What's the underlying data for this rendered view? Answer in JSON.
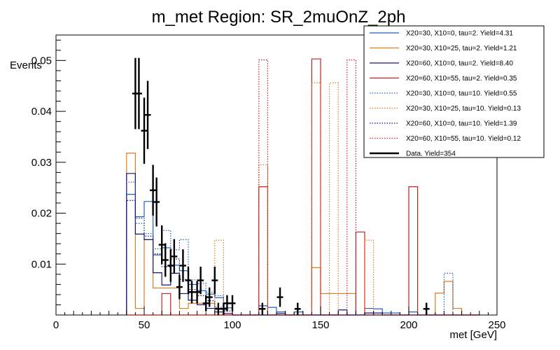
{
  "chart_data": {
    "type": "histogram",
    "title": "m_met Region: SR_2muOnZ_2ph",
    "xlabel": "met [GeV]",
    "ylabel": "Events",
    "xlim": [
      0,
      250
    ],
    "ylim": [
      0,
      0.055
    ],
    "bin_width": 5,
    "bin_start": 40,
    "x_ticks": [
      0,
      50,
      100,
      150,
      200,
      250
    ],
    "x_tick_labels": [
      "0",
      "50",
      "100",
      "150",
      "200",
      "250"
    ],
    "y_ticks": [
      0.01,
      0.02,
      0.03,
      0.04,
      0.05
    ],
    "y_tick_labels": [
      "0.01",
      "0.02",
      "0.03",
      "0.04",
      "0.05"
    ],
    "series": [
      {
        "name": "X20=30, X10=0, tau=2. Yield=4.31",
        "color": "#1f5fbf",
        "dash": false,
        "values": [
          0.0237,
          0.0193,
          0.0223,
          0.0118,
          0.0132,
          0.0098,
          0.0087,
          0.006,
          0.0048,
          0.0041,
          0.0034,
          0.0014,
          0.0,
          0.0,
          0.0,
          0.0018,
          0.0015,
          0.0006,
          0.0,
          0.0006,
          0.0,
          0.0,
          0.0,
          0.0,
          0.0,
          0.0,
          0.0,
          0.0013,
          0.0012,
          0.0004,
          0.0004,
          0.0,
          0.0006,
          0.0,
          0.0,
          0.0,
          0.0,
          0.0,
          0.0,
          0.0
        ]
      },
      {
        "name": "X20=30, X10=25, tau=2. Yield=1.21",
        "color": "#e07b20",
        "dash": false,
        "values": [
          0.0318,
          0.0013,
          0.0148,
          0.0053,
          0.0053,
          0.0053,
          0.0013,
          0.0023,
          0.0023,
          0.0023,
          0.0,
          0.0,
          0.0,
          0.0,
          0.0,
          0.0,
          0.0,
          0.0,
          0.0,
          0.0,
          0.0,
          0.0093,
          0.0042,
          0.0042,
          0.0042,
          0.0042,
          0.0,
          0.0,
          0.0,
          0.0,
          0.0,
          0.0,
          0.0,
          0.0,
          0.0,
          0.0043,
          0.0066,
          0.0013,
          0.0,
          0.0
        ]
      },
      {
        "name": "X20=60, X10=0, tau=2. Yield=8.40",
        "color": "#141478",
        "dash": false,
        "values": [
          0.0278,
          0.0159,
          0.0148,
          0.0083,
          0.0059,
          0.0082,
          0.0042,
          0.0029,
          0.002,
          0.0013,
          0.0006,
          0.0003,
          0.0,
          0.0,
          0.0,
          0.0,
          0.0,
          0.0003,
          0.0,
          0.0,
          0.0,
          0.0,
          0.0,
          0.0,
          0.001,
          0.0,
          0.0,
          0.0004,
          0.0004,
          0.0,
          0.0,
          0.0,
          0.0,
          0.0,
          0.0,
          0.0,
          0.0,
          0.0,
          0.0,
          0.0
        ]
      },
      {
        "name": "X20=60, X10=55, tau=2. Yield=0.35",
        "color": "#cc1f1f",
        "dash": false,
        "values": [
          0.0,
          0.0,
          0.0,
          0.0,
          0.0042,
          0.0,
          0.0,
          0.0,
          0.0,
          0.0,
          0.0,
          0.0,
          0.0,
          0.0,
          0.0,
          0.0252,
          0.0,
          0.0,
          0.0,
          0.0,
          0.0,
          0.0503,
          0.0,
          0.0,
          0.0,
          0.0,
          0.0163,
          0.0,
          0.0,
          0.0,
          0.0,
          0.0,
          0.0252,
          0.0,
          0.0,
          0.0,
          0.0,
          0.0,
          0.0,
          0.0
        ]
      },
      {
        "name": "X20=30, X10=0, tau=10. Yield=0.55",
        "color": "#1f5fbf",
        "dash": true,
        "values": [
          0.0261,
          0.018,
          0.016,
          0.013,
          0.0166,
          0.0128,
          0.0148,
          0.0069,
          0.0062,
          0.0045,
          0.0038,
          0.0014,
          0.0,
          0.0,
          0.0,
          0.0018,
          0.0,
          0.0,
          0.0,
          0.0,
          0.0,
          0.0,
          0.0,
          0.0,
          0.0,
          0.0,
          0.0,
          0.0,
          0.0,
          0.0,
          0.0,
          0.0,
          0.0,
          0.0,
          0.0,
          0.0,
          0.0082,
          0.0,
          0.0,
          0.0
        ]
      },
      {
        "name": "X20=30, X10=25, tau=10. Yield=0.13",
        "color": "#e07b20",
        "dash": true,
        "values": [
          0.0,
          0.0,
          0.0,
          0.0,
          0.0,
          0.0,
          0.0,
          0.0,
          0.0,
          0.0,
          0.0147,
          0.0,
          0.0,
          0.0,
          0.0,
          0.0295,
          0.0,
          0.0,
          0.0,
          0.0,
          0.0,
          0.0456,
          0.0,
          0.0456,
          0.0,
          0.0,
          0.0,
          0.0147,
          0.0,
          0.0,
          0.0,
          0.0,
          0.0,
          0.0,
          0.0,
          0.0,
          0.0,
          0.0,
          0.0,
          0.0
        ]
      },
      {
        "name": "X20=60, X10=0, tau=10. Yield=1.39",
        "color": "#141478",
        "dash": true,
        "values": [
          0.0225,
          0.019,
          0.0155,
          0.012,
          0.0095,
          0.011,
          0.007,
          0.005,
          0.0038,
          0.0028,
          0.0015,
          0.0008,
          0.0,
          0.0,
          0.0,
          0.0,
          0.0,
          0.0,
          0.0,
          0.0,
          0.0,
          0.0,
          0.0,
          0.0,
          0.0,
          0.0,
          0.0,
          0.0,
          0.0,
          0.0,
          0.0,
          0.0,
          0.0,
          0.0,
          0.0,
          0.0,
          0.0,
          0.0,
          0.0,
          0.0
        ]
      },
      {
        "name": "X20=60, X10=55, tau=10. Yield=0.12",
        "color": "#cc1f1f",
        "dash": true,
        "values": [
          0.0,
          0.0,
          0.0,
          0.0,
          0.0,
          0.0,
          0.0,
          0.0,
          0.0,
          0.0,
          0.0,
          0.0,
          0.0,
          0.0,
          0.0,
          0.0501,
          0.0,
          0.0,
          0.0,
          0.0,
          0.0,
          0.0,
          0.0,
          0.0,
          0.0,
          0.0501,
          0.0,
          0.0,
          0.0,
          0.0,
          0.0,
          0.0,
          0.0,
          0.0,
          0.0,
          0.0,
          0.0,
          0.0,
          0.0,
          0.0
        ]
      }
    ],
    "data_series": {
      "name": "Data. Yield=354",
      "color": "#000000",
      "points": [
        {
          "x": 45,
          "y": 0.0435,
          "err": 0.007
        },
        {
          "x": 47,
          "y": 0.0435,
          "err": 0.007
        },
        {
          "x": 50,
          "y": 0.0362,
          "err": 0.0065
        },
        {
          "x": 52,
          "y": 0.0393,
          "err": 0.0067
        },
        {
          "x": 55,
          "y": 0.0245,
          "err": 0.005
        },
        {
          "x": 57,
          "y": 0.0222,
          "err": 0.0048
        },
        {
          "x": 60,
          "y": 0.0138,
          "err": 0.0038
        },
        {
          "x": 62,
          "y": 0.0108,
          "err": 0.0033
        },
        {
          "x": 65,
          "y": 0.0097,
          "err": 0.0032
        },
        {
          "x": 67,
          "y": 0.0115,
          "err": 0.0034
        },
        {
          "x": 70,
          "y": 0.0055,
          "err": 0.0024
        },
        {
          "x": 72,
          "y": 0.0097,
          "err": 0.0032
        },
        {
          "x": 75,
          "y": 0.0068,
          "err": 0.0027
        },
        {
          "x": 77,
          "y": 0.0045,
          "err": 0.0022
        },
        {
          "x": 80,
          "y": 0.0045,
          "err": 0.0022
        },
        {
          "x": 82,
          "y": 0.0068,
          "err": 0.0027
        },
        {
          "x": 85,
          "y": 0.0023,
          "err": 0.0016
        },
        {
          "x": 87,
          "y": 0.0035,
          "err": 0.0019
        },
        {
          "x": 90,
          "y": 0.0068,
          "err": 0.0027
        },
        {
          "x": 92,
          "y": 0.0012,
          "err": 0.0012
        },
        {
          "x": 95,
          "y": 0.0012,
          "err": 0.0012
        },
        {
          "x": 97,
          "y": 0.0023,
          "err": 0.0016
        },
        {
          "x": 100,
          "y": 0.0023,
          "err": 0.0016
        },
        {
          "x": 117,
          "y": 0.0012,
          "err": 0.0012
        },
        {
          "x": 127,
          "y": 0.0035,
          "err": 0.0019
        },
        {
          "x": 137,
          "y": 0.0012,
          "err": 0.0012
        },
        {
          "x": 210,
          "y": 0.0012,
          "err": 0.0012
        }
      ]
    },
    "legend": "top-right"
  }
}
